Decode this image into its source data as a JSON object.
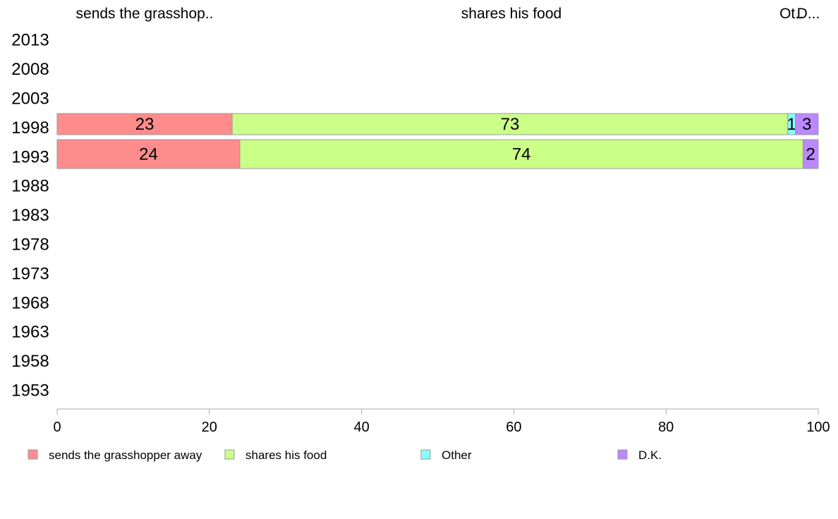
{
  "chart_data": {
    "type": "bar",
    "orientation": "horizontal",
    "stacked": true,
    "categories": [
      "2013",
      "2008",
      "2003",
      "1998",
      "1993",
      "1988",
      "1983",
      "1978",
      "1973",
      "1968",
      "1963",
      "1958",
      "1953"
    ],
    "column_headers": [
      "sends the grasshop..",
      "shares his food",
      "Ot..",
      "D..."
    ],
    "series": [
      {
        "name": "sends the grasshopper away",
        "color": "#ff8c8c",
        "values": [
          null,
          null,
          null,
          23,
          24,
          null,
          null,
          null,
          null,
          null,
          null,
          null,
          null
        ],
        "labels": [
          "",
          "",
          "",
          "23",
          "24",
          "",
          "",
          "",
          "",
          "",
          "",
          "",
          ""
        ]
      },
      {
        "name": "shares his food",
        "color": "#ccff88",
        "values": [
          null,
          null,
          null,
          73,
          74,
          null,
          null,
          null,
          null,
          null,
          null,
          null,
          null
        ],
        "labels": [
          "",
          "",
          "",
          "73",
          "74",
          "",
          "",
          "",
          "",
          "",
          "",
          "",
          ""
        ]
      },
      {
        "name": "Other",
        "color": "#88ffff",
        "values": [
          null,
          null,
          null,
          1,
          0,
          null,
          null,
          null,
          null,
          null,
          null,
          null,
          null
        ],
        "labels": [
          "",
          "",
          "",
          "1",
          "",
          "",
          "",
          "",
          "",
          "",
          "",
          "",
          ""
        ]
      },
      {
        "name": "D.K.",
        "color": "#bb88ff",
        "values": [
          null,
          null,
          null,
          3,
          2,
          null,
          null,
          null,
          null,
          null,
          null,
          null,
          null
        ],
        "labels": [
          "",
          "",
          "",
          "3",
          "2",
          "",
          "",
          "",
          "",
          "",
          "",
          "",
          ""
        ]
      }
    ],
    "x_ticks": [
      "0",
      "20",
      "40",
      "60",
      "80",
      "100"
    ],
    "xlim": [
      0,
      100
    ],
    "grid": false,
    "legend_position": "bottom"
  }
}
